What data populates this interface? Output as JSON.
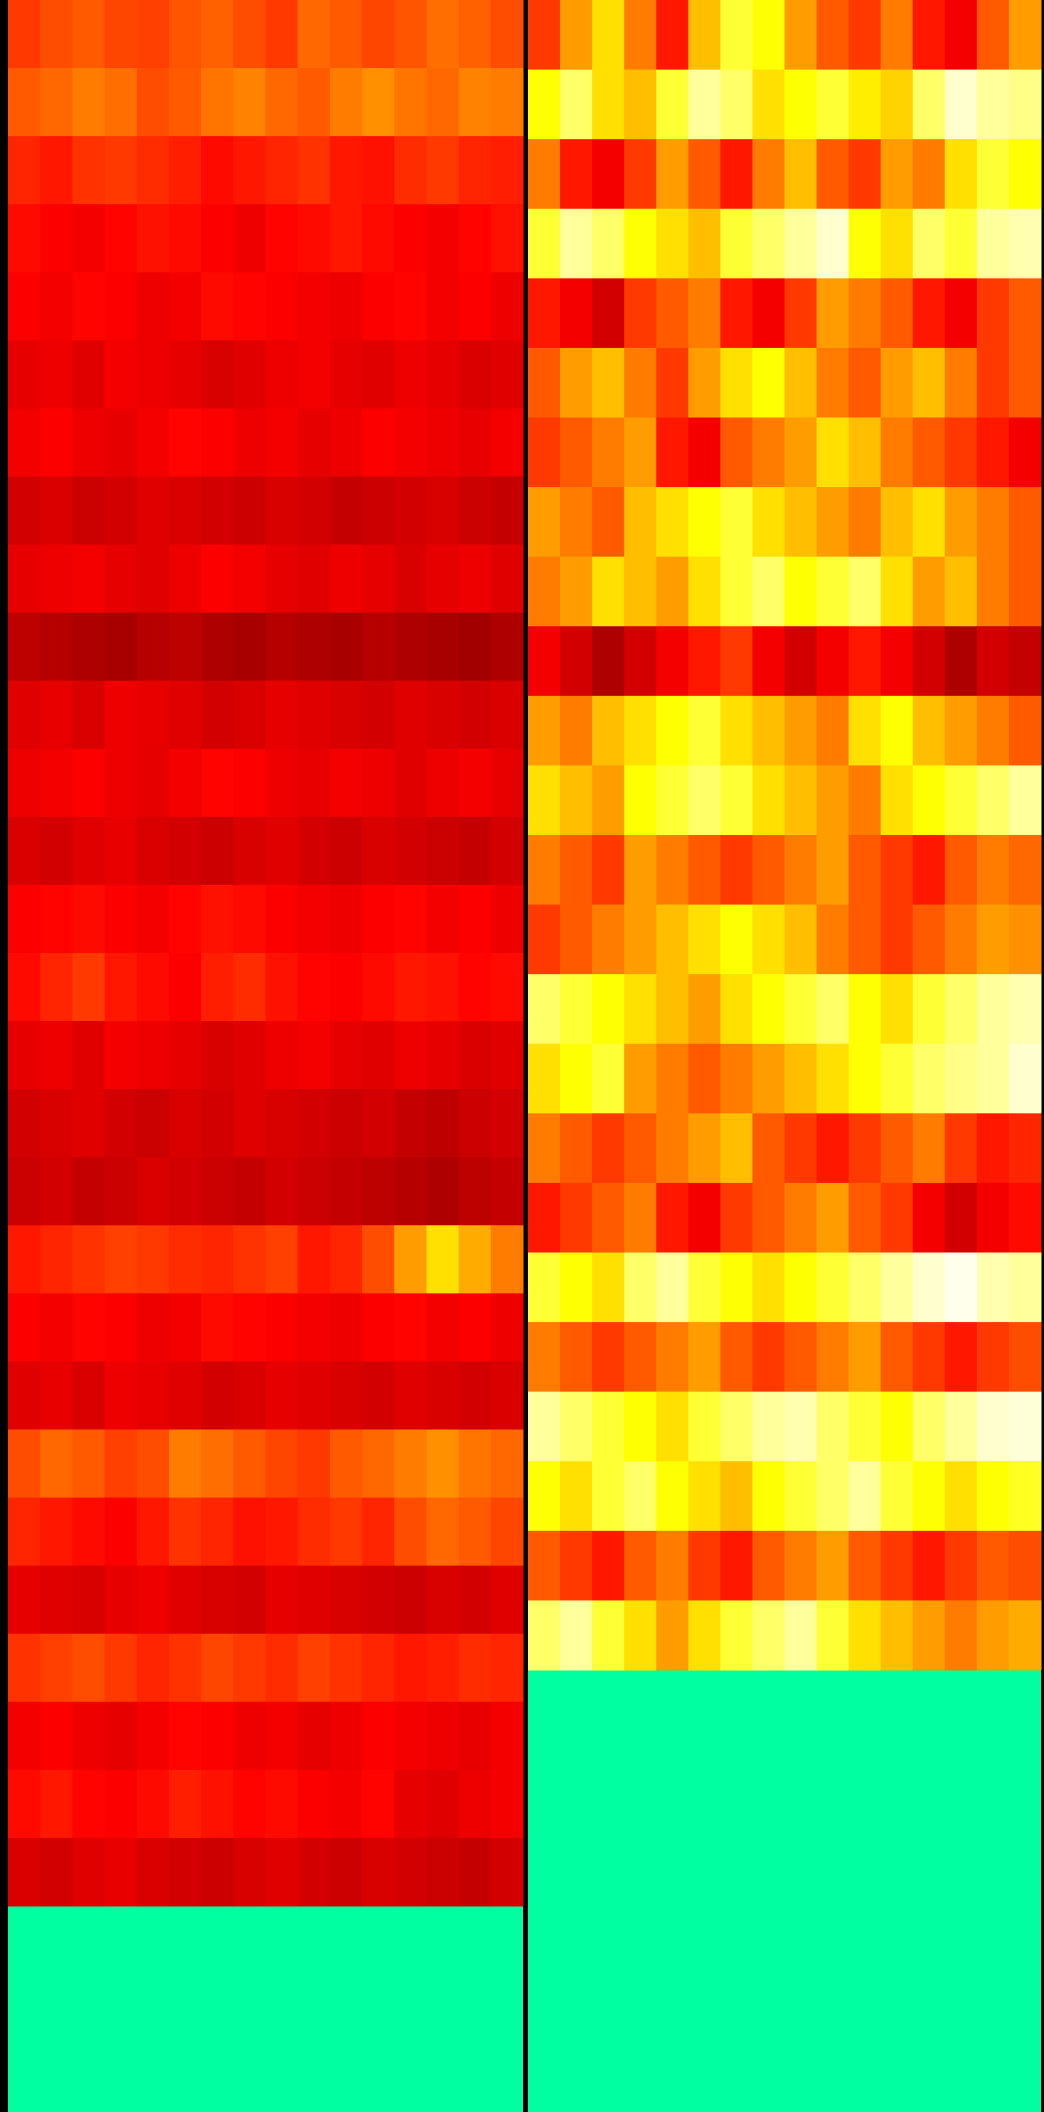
{
  "chart_data": [
    {
      "type": "heatmap",
      "colormap": "hot",
      "clim": [
        0,
        100
      ],
      "empty_color": "#00ffa0",
      "values": [
        [
          45,
          48,
          50,
          47,
          46,
          49,
          51,
          48,
          45,
          52,
          50,
          47,
          49,
          53,
          51,
          48
        ],
        [
          50,
          52,
          55,
          53,
          48,
          50,
          54,
          56,
          52,
          50,
          55,
          58,
          54,
          52,
          56,
          55
        ],
        [
          42,
          40,
          44,
          45,
          43,
          41,
          38,
          40,
          42,
          44,
          40,
          39,
          43,
          45,
          42,
          41
        ],
        [
          38,
          36,
          35,
          37,
          39,
          38,
          36,
          34,
          37,
          38,
          40,
          38,
          36,
          35,
          37,
          39
        ],
        [
          36,
          35,
          37,
          36,
          34,
          35,
          38,
          37,
          36,
          35,
          34,
          36,
          37,
          35,
          36,
          34
        ],
        [
          33,
          34,
          32,
          35,
          34,
          33,
          31,
          32,
          34,
          35,
          33,
          32,
          34,
          33,
          31,
          32
        ],
        [
          35,
          36,
          34,
          33,
          35,
          37,
          36,
          34,
          35,
          33,
          34,
          36,
          35,
          34,
          33,
          35
        ],
        [
          30,
          31,
          29,
          30,
          32,
          31,
          30,
          29,
          31,
          30,
          28,
          29,
          30,
          31,
          29,
          28
        ],
        [
          33,
          34,
          35,
          33,
          32,
          34,
          36,
          35,
          33,
          32,
          34,
          33,
          31,
          33,
          34,
          32
        ],
        [
          27,
          26,
          25,
          24,
          26,
          27,
          25,
          24,
          26,
          25,
          24,
          26,
          25,
          24,
          23,
          25
        ],
        [
          32,
          33,
          31,
          34,
          33,
          32,
          30,
          31,
          33,
          32,
          31,
          30,
          32,
          31,
          30,
          31
        ],
        [
          34,
          35,
          36,
          34,
          33,
          35,
          37,
          36,
          34,
          33,
          35,
          34,
          32,
          34,
          35,
          33
        ],
        [
          31,
          30,
          32,
          33,
          31,
          30,
          29,
          31,
          32,
          30,
          29,
          31,
          30,
          29,
          28,
          30
        ],
        [
          36,
          37,
          38,
          36,
          35,
          37,
          39,
          38,
          36,
          35,
          34,
          36,
          37,
          35,
          36,
          34
        ],
        [
          38,
          42,
          45,
          40,
          38,
          36,
          41,
          43,
          39,
          37,
          36,
          38,
          40,
          39,
          37,
          38
        ],
        [
          33,
          34,
          32,
          35,
          34,
          33,
          31,
          32,
          34,
          35,
          33,
          32,
          34,
          33,
          31,
          32
        ],
        [
          30,
          31,
          32,
          30,
          29,
          31,
          30,
          32,
          31,
          30,
          29,
          30,
          28,
          27,
          29,
          30
        ],
        [
          29,
          30,
          28,
          29,
          31,
          30,
          29,
          28,
          30,
          29,
          28,
          27,
          26,
          25,
          27,
          28
        ],
        [
          40,
          42,
          44,
          46,
          45,
          43,
          42,
          44,
          46,
          40,
          42,
          48,
          60,
          70,
          62,
          55
        ],
        [
          36,
          35,
          37,
          36,
          34,
          35,
          38,
          37,
          36,
          35,
          34,
          36,
          37,
          35,
          36,
          34
        ],
        [
          32,
          33,
          31,
          34,
          33,
          32,
          30,
          31,
          33,
          32,
          31,
          30,
          32,
          31,
          30,
          31
        ],
        [
          48,
          52,
          50,
          46,
          48,
          55,
          53,
          50,
          47,
          45,
          50,
          52,
          55,
          58,
          54,
          52
        ],
        [
          42,
          40,
          38,
          36,
          40,
          44,
          42,
          39,
          40,
          43,
          45,
          42,
          48,
          52,
          50,
          47
        ],
        [
          33,
          32,
          31,
          33,
          34,
          32,
          31,
          30,
          33,
          32,
          31,
          30,
          29,
          31,
          30,
          32
        ],
        [
          44,
          46,
          48,
          45,
          42,
          44,
          47,
          45,
          43,
          46,
          44,
          42,
          40,
          41,
          43,
          42
        ],
        [
          35,
          36,
          34,
          33,
          35,
          37,
          36,
          34,
          35,
          33,
          34,
          36,
          35,
          34,
          33,
          35
        ],
        [
          38,
          40,
          37,
          36,
          38,
          41,
          39,
          37,
          38,
          36,
          35,
          37,
          33,
          32,
          34,
          35
        ],
        [
          31,
          30,
          32,
          33,
          31,
          30,
          29,
          31,
          32,
          30,
          29,
          31,
          30,
          29,
          28,
          30
        ]
      ]
    },
    {
      "type": "heatmap",
      "colormap": "hot",
      "clim": [
        0,
        100
      ],
      "empty_color": "#00ffa0",
      "values": [
        [
          45,
          60,
          70,
          55,
          40,
          65,
          80,
          75,
          60,
          50,
          45,
          55,
          40,
          35,
          50,
          60
        ],
        [
          75,
          85,
          70,
          65,
          80,
          90,
          85,
          70,
          75,
          80,
          72,
          68,
          85,
          95,
          90,
          88
        ],
        [
          55,
          40,
          35,
          45,
          60,
          50,
          40,
          55,
          65,
          50,
          45,
          60,
          55,
          70,
          80,
          75
        ],
        [
          80,
          90,
          85,
          75,
          70,
          65,
          80,
          85,
          90,
          95,
          75,
          70,
          85,
          80,
          90,
          92
        ],
        [
          40,
          35,
          30,
          45,
          50,
          55,
          40,
          35,
          45,
          60,
          55,
          50,
          40,
          35,
          45,
          50
        ],
        [
          50,
          60,
          65,
          55,
          45,
          60,
          70,
          75,
          65,
          55,
          50,
          60,
          65,
          55,
          45,
          50
        ],
        [
          45,
          50,
          55,
          60,
          40,
          35,
          50,
          55,
          60,
          70,
          65,
          55,
          50,
          45,
          40,
          35
        ],
        [
          60,
          55,
          50,
          65,
          70,
          75,
          80,
          70,
          65,
          60,
          55,
          65,
          70,
          60,
          55,
          50
        ],
        [
          55,
          60,
          70,
          65,
          60,
          70,
          80,
          85,
          75,
          80,
          85,
          70,
          60,
          65,
          55,
          50
        ],
        [
          35,
          30,
          25,
          30,
          35,
          40,
          45,
          35,
          30,
          35,
          40,
          35,
          30,
          25,
          30,
          28
        ],
        [
          60,
          55,
          65,
          70,
          75,
          80,
          70,
          65,
          60,
          55,
          70,
          75,
          65,
          60,
          55,
          50
        ],
        [
          70,
          65,
          60,
          75,
          80,
          85,
          80,
          70,
          65,
          60,
          55,
          70,
          75,
          80,
          85,
          90
        ],
        [
          55,
          50,
          45,
          60,
          55,
          50,
          45,
          50,
          55,
          60,
          50,
          45,
          40,
          50,
          55,
          52
        ],
        [
          45,
          50,
          55,
          60,
          65,
          70,
          75,
          70,
          65,
          55,
          50,
          45,
          50,
          55,
          60,
          58
        ],
        [
          85,
          80,
          75,
          70,
          65,
          60,
          70,
          75,
          80,
          85,
          75,
          70,
          80,
          85,
          90,
          92
        ],
        [
          70,
          75,
          80,
          60,
          55,
          50,
          55,
          60,
          65,
          70,
          75,
          80,
          85,
          88,
          90,
          95
        ],
        [
          55,
          50,
          45,
          50,
          55,
          60,
          65,
          50,
          45,
          40,
          45,
          50,
          55,
          45,
          40,
          42
        ],
        [
          40,
          45,
          50,
          55,
          40,
          35,
          45,
          50,
          55,
          60,
          50,
          45,
          35,
          30,
          35,
          38
        ],
        [
          80,
          75,
          70,
          85,
          90,
          80,
          75,
          70,
          75,
          80,
          85,
          90,
          95,
          98,
          92,
          90
        ],
        [
          55,
          50,
          45,
          50,
          55,
          60,
          50,
          45,
          50,
          55,
          60,
          50,
          45,
          40,
          45,
          48
        ],
        [
          90,
          85,
          80,
          75,
          70,
          80,
          85,
          90,
          92,
          85,
          80,
          75,
          85,
          90,
          95,
          96
        ],
        [
          75,
          70,
          80,
          85,
          75,
          70,
          65,
          75,
          80,
          85,
          90,
          80,
          75,
          70,
          75,
          78
        ],
        [
          50,
          45,
          40,
          50,
          55,
          45,
          40,
          50,
          55,
          60,
          50,
          45,
          40,
          45,
          50,
          48
        ],
        [
          85,
          90,
          80,
          70,
          60,
          70,
          80,
          85,
          90,
          80,
          70,
          65,
          60,
          55,
          60,
          62
        ]
      ]
    }
  ]
}
